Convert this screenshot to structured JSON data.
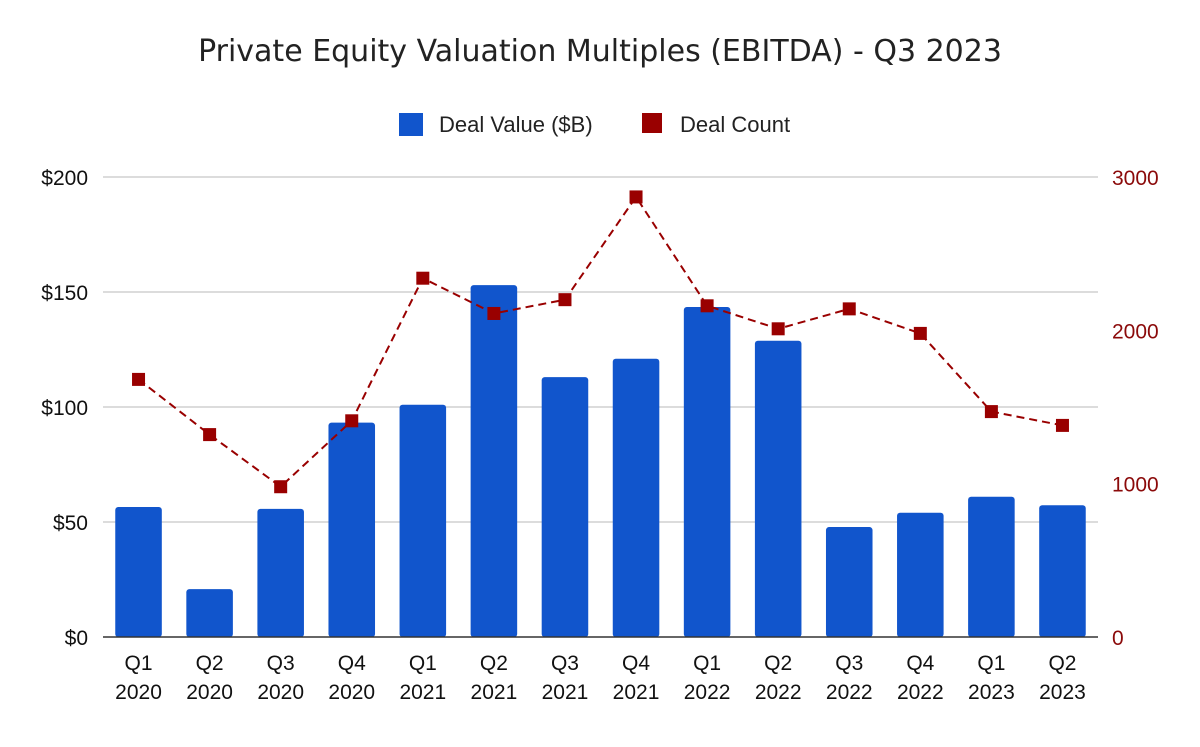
{
  "chart_data": {
    "type": "bar",
    "title": "Private Equity Valuation Multiples (EBITDA) - Q3 2023",
    "categories": [
      [
        "Q1",
        "2020"
      ],
      [
        "Q2",
        "2020"
      ],
      [
        "Q3",
        "2020"
      ],
      [
        "Q4",
        "2020"
      ],
      [
        "Q1",
        "2021"
      ],
      [
        "Q2",
        "2021"
      ],
      [
        "Q3",
        "2021"
      ],
      [
        "Q4",
        "2021"
      ],
      [
        "Q1",
        "2022"
      ],
      [
        "Q2",
        "2022"
      ],
      [
        "Q3",
        "2022"
      ],
      [
        "Q4",
        "2022"
      ],
      [
        "Q1",
        "2023"
      ],
      [
        "Q2",
        "2023"
      ]
    ],
    "series": [
      {
        "name": "Deal Value ($B)",
        "type": "bar",
        "axis": "left",
        "color": "#1155cc",
        "values": [
          56.5,
          20.8,
          55.7,
          93.2,
          101.0,
          153.0,
          113.0,
          121.0,
          143.5,
          128.8,
          47.8,
          54.0,
          61.0,
          57.3
        ]
      },
      {
        "name": "Deal Count",
        "type": "line",
        "line_style": "dashed",
        "marker": "square",
        "axis": "right",
        "color": "#990000",
        "values": [
          1680,
          1320,
          980,
          1410,
          2340,
          2110,
          2200,
          2870,
          2160,
          2010,
          2140,
          1980,
          1470,
          1380
        ]
      }
    ],
    "y_left": {
      "ylim": [
        0,
        200
      ],
      "ticks": [
        0,
        50,
        100,
        150,
        200
      ],
      "tick_labels": [
        "$0",
        "$50",
        "$100",
        "$150",
        "$200"
      ]
    },
    "y_right": {
      "ylim": [
        0,
        3000
      ],
      "ticks": [
        0,
        1000,
        2000,
        3000
      ],
      "tick_labels": [
        "0",
        "1000",
        "2000",
        "3000"
      ],
      "color": "#990000"
    },
    "grid": true,
    "legend_position": "top-center",
    "xlabel": "",
    "ylabel": ""
  }
}
